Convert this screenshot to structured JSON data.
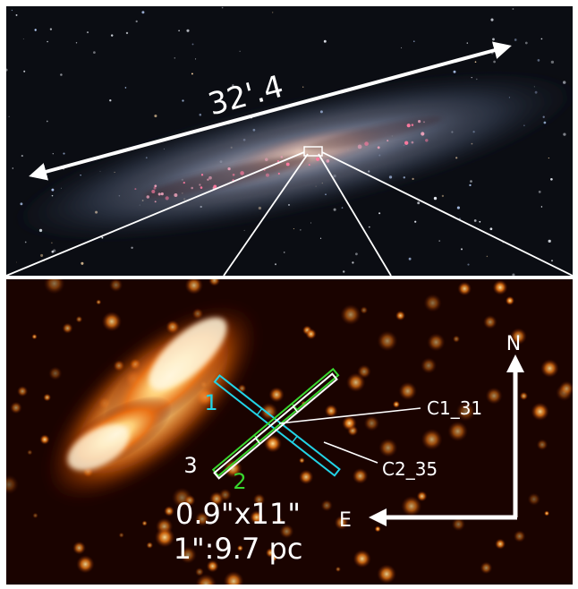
{
  "top_panel": {
    "scale_label": "32'.4"
  },
  "bottom_panel": {
    "slit_labels": {
      "slit_1": "1",
      "slit_2": "2",
      "slit_3": "3"
    },
    "annotations": {
      "c1": "C1_31",
      "c2": "C2_35"
    },
    "compass": {
      "north": "N",
      "east": "E"
    },
    "info": {
      "slit_size": "0.9\"x11\"",
      "scale": "1\":9.7 pc"
    }
  },
  "colors": {
    "slit_1": "#22d3e6",
    "slit_2": "#39d62e",
    "slit_3": "#ffffff",
    "background_top": "#0c0e14",
    "background_bottom": "#1a0400"
  }
}
